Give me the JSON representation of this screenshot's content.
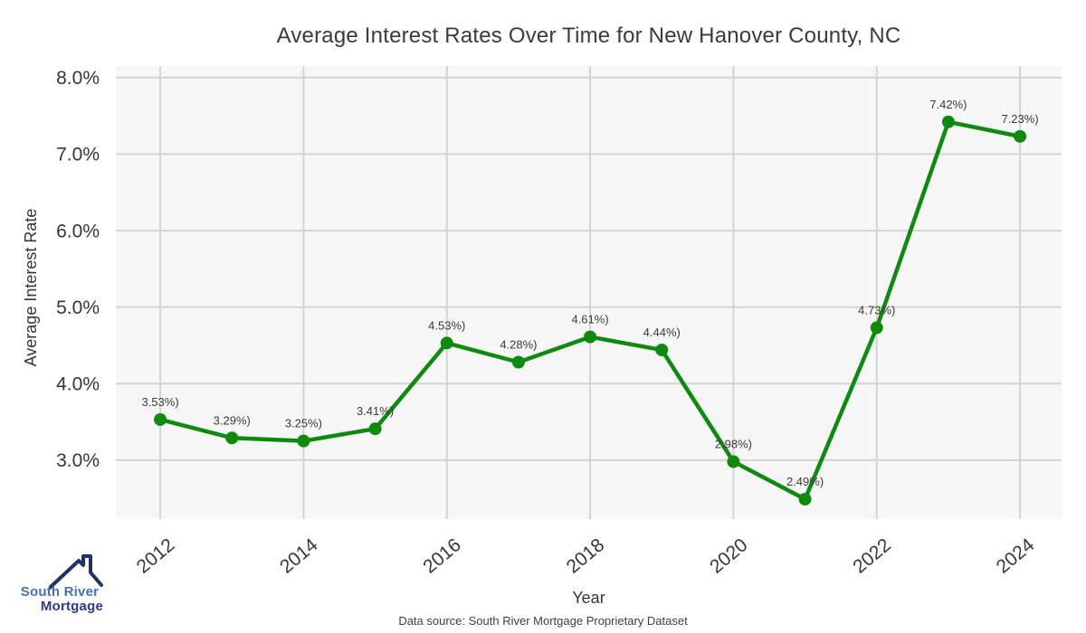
{
  "chart_data": {
    "type": "line",
    "title": "Average Interest Rates Over Time for New Hanover County, NC",
    "xlabel": "Year",
    "ylabel": "Average Interest Rate",
    "x": [
      2012,
      2013,
      2014,
      2015,
      2016,
      2017,
      2018,
      2019,
      2020,
      2021,
      2022,
      2023,
      2024
    ],
    "values": [
      3.53,
      3.29,
      3.25,
      3.41,
      4.53,
      4.28,
      4.61,
      4.44,
      2.98,
      2.49,
      4.73,
      7.42,
      7.23
    ],
    "point_labels": [
      "3.53%)",
      "3.29%)",
      "3.25%)",
      "3.41%)",
      "4.53%)",
      "4.28%)",
      "4.61%)",
      "4.44%)",
      "2.98%)",
      "2.49%)",
      "4.73%)",
      "7.42%)",
      "7.23%)"
    ],
    "xticks": {
      "values": [
        2012,
        2014,
        2016,
        2018,
        2020,
        2022,
        2024
      ],
      "labels": [
        "2012",
        "2014",
        "2016",
        "2018",
        "2020",
        "2022",
        "2024"
      ]
    },
    "yticks": {
      "values": [
        3,
        4,
        5,
        6,
        7,
        8
      ],
      "labels": [
        "3.0%",
        "4.0%",
        "5.0%",
        "6.0%",
        "7.0%",
        "8.0%"
      ]
    },
    "xlim": [
      2011.38,
      2024.58
    ],
    "ylim": [
      2.23,
      8.15
    ],
    "grid": true,
    "legend": null,
    "line_color": "#0e8a0e",
    "marker": "circle",
    "plot_bg": "#f7f7f7",
    "grid_color": "#d4d4d4"
  },
  "footer": {
    "data_source": "Data source: South River Mortgage Proprietary Dataset"
  },
  "logo": {
    "line1": "South River",
    "line2": "Mortgage",
    "color1": "#4a6db8",
    "color2": "#2c3a8c",
    "roof_color": "#223067"
  }
}
